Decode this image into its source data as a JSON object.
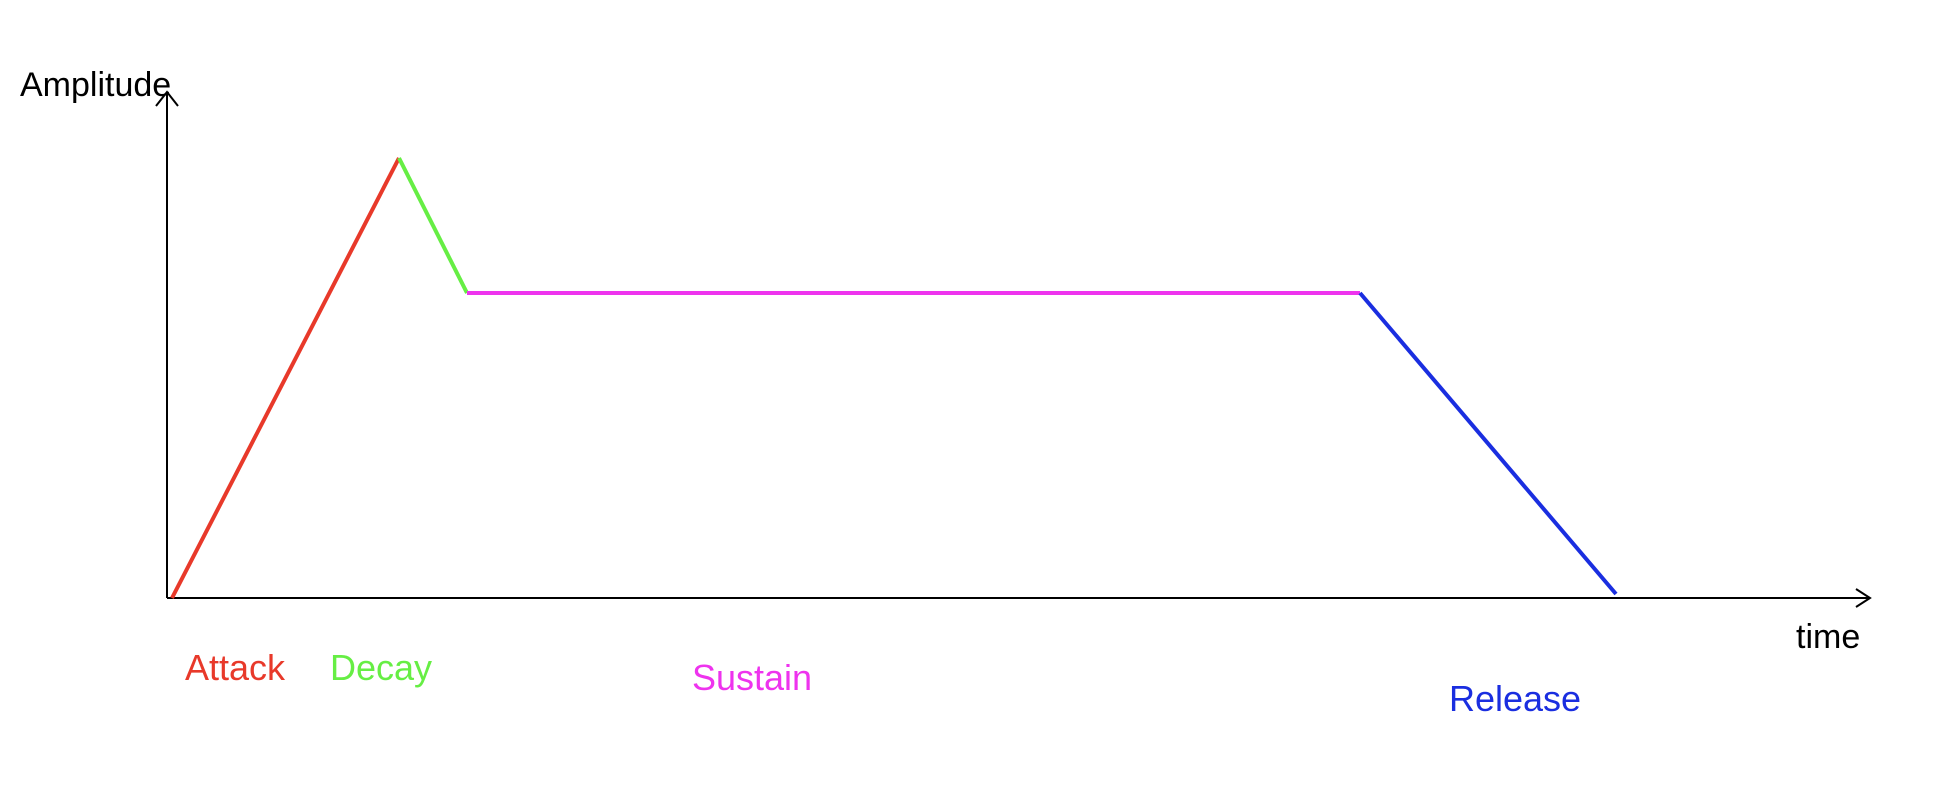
{
  "diagram": {
    "y_axis_label": "Amplitude",
    "x_axis_label": "time",
    "axis_color": "#000000"
  },
  "phases": {
    "attack": {
      "label": "Attack",
      "color": "#e8392a"
    },
    "decay": {
      "label": "Decay",
      "color": "#66ee44"
    },
    "sustain": {
      "label": "Sustain",
      "color": "#ee33ee"
    },
    "release": {
      "label": "Release",
      "color": "#1a2ee0"
    }
  }
}
